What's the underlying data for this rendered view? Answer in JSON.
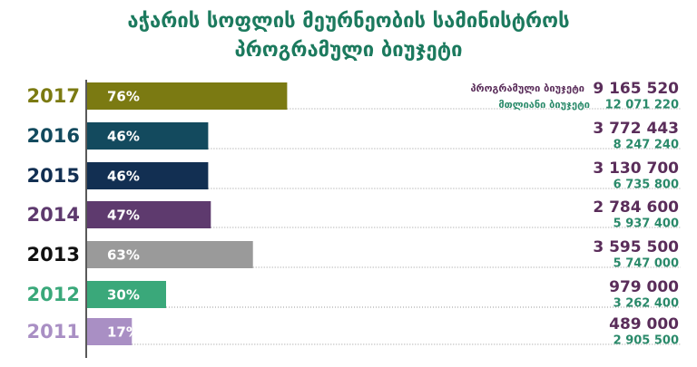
{
  "chart_data": {
    "type": "bar",
    "title": [
      "აჭარის სოფლის მეურნეობის სამინისტროს",
      "პროგრამული ბიუჯეტი"
    ],
    "categories": [
      "2017",
      "2016",
      "2015",
      "2014",
      "2013",
      "2012",
      "2011"
    ],
    "category_colors": [
      "#7b7a12",
      "#134a5e",
      "#122f52",
      "#5e3a6e",
      "#111111",
      "#3aa87a",
      "#a98fc4"
    ],
    "values": [
      76,
      46,
      46,
      47,
      63,
      30,
      17
    ],
    "value_labels": [
      "76%",
      "46%",
      "46%",
      "47%",
      "63%",
      "30%",
      "17%"
    ],
    "colors": [
      "#7b7a12",
      "#134a5e",
      "#122f52",
      "#5e3a6e",
      "#9a9a9a",
      "#3aa87a",
      "#a98fc4"
    ],
    "xlim": [
      0,
      100
    ],
    "budgets": [
      {
        "name": "პროგრამული ბიუჯეტი",
        "color": "#5a2d5a",
        "values": [
          9165520,
          3772443,
          3130700,
          2784600,
          3595500,
          979000,
          489000
        ],
        "value_labels": [
          "9 165 520",
          "3 772 443",
          "3 130 700",
          "2 784 600",
          "3 595 500",
          "979 000",
          "489 000"
        ]
      },
      {
        "name": "მთლიანი ბიუჯეტი",
        "color": "#2a8a6a",
        "values": [
          12071220,
          8247240,
          6735800,
          5937400,
          5747000,
          3262400,
          2905500
        ],
        "value_labels": [
          "12 071 220",
          "8 247 240",
          "6 735 800",
          "5 937 400",
          "5 747 000",
          "3 262 400",
          "2 905 500"
        ]
      }
    ]
  }
}
